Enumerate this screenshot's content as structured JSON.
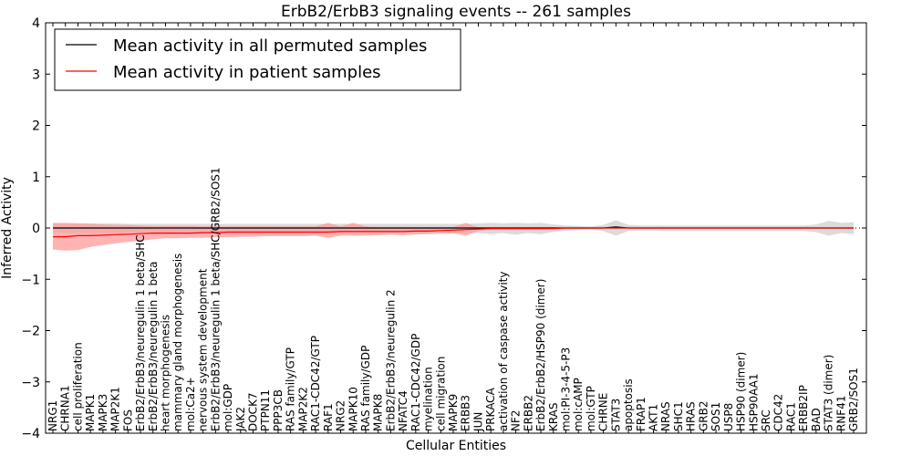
{
  "chart_data": {
    "type": "line",
    "title": "ErbB2/ErbB3 signaling events -- 261 samples",
    "xlabel": "Cellular Entities",
    "ylabel": "Inferred Activity",
    "ylim": [
      -4,
      4
    ],
    "yticks": [
      "4",
      "3",
      "2",
      "1",
      "0",
      "−1",
      "−2",
      "−3",
      "−4"
    ],
    "legend": {
      "position": "top-left",
      "entries": [
        {
          "label": "Mean activity in all permuted samples",
          "color": "#000000"
        },
        {
          "label": "Mean activity in patient samples",
          "color": "#ff0000"
        }
      ]
    },
    "categories": [
      "NRG1",
      "CHRNA1",
      "cell proliferation",
      "MAPK1",
      "MAPK3",
      "MAP2K1",
      "FOS",
      "ErbB2/ErbB3/neuregulin 1 beta/SHC",
      "ErbB2/ErbB3/neuregulin 1 beta",
      "heart morphogenesis",
      "mammary gland morphogenesis",
      "mol:Ca2+",
      "nervous system development",
      "ErbB2/ErbB3/neuregulin 1 beta/SHC/GRB2/SOS1",
      "mol:GDP",
      "JAK2",
      "DOCK7",
      "PTPN11",
      "PPP3CB",
      "RAS family/GTP",
      "MAP2K2",
      "RAC1-CDC42/GTP",
      "RAF1",
      "NRG2",
      "MAPK10",
      "RAS family/GDP",
      "MAPK8",
      "ErbB2/ErbB3/neuregulin 2",
      "NFATC4",
      "RAC1-CDC42/GDP",
      "myelination",
      "cell migration",
      "MAPK9",
      "ERBB3",
      "JUN",
      "PRKACA",
      "activation of caspase activity",
      "NF2",
      "ERBB2",
      "ErbB2/ErbB2/HSP90 (dimer)",
      "KRAS",
      "mol:PI-3-4-5-P3",
      "mol:cAMP",
      "mol:GTP",
      "CHRNE",
      "STAT3",
      "apoptosis",
      "FRAP1",
      "AKT1",
      "NRAS",
      "SHC1",
      "HRAS",
      "GRB2",
      "SOS1",
      "USP8",
      "HSP90 (dimer)",
      "HSP90AA1",
      "SRC",
      "CDC42",
      "RAC1",
      "ERBB2IP",
      "BAD",
      "STAT3 (dimer)",
      "RNF41",
      "GRB2/SOS1"
    ],
    "series": [
      {
        "name": "Mean activity in all permuted samples",
        "color": "#000000",
        "values": [
          0,
          0,
          0,
          0,
          0,
          0,
          0,
          0,
          0,
          0,
          0,
          0,
          0,
          0,
          0,
          0,
          0,
          0,
          0,
          0,
          0,
          0,
          0,
          0,
          0,
          0,
          0,
          0,
          0,
          0,
          0,
          0,
          0,
          0,
          0,
          0,
          0,
          0,
          0,
          0,
          0,
          0,
          0,
          0,
          0,
          0.02,
          0,
          0,
          0,
          0,
          0,
          0,
          0,
          0,
          0,
          0,
          0,
          0,
          0,
          0,
          0,
          0,
          0,
          0,
          0
        ]
      },
      {
        "name": "Mean activity in patient samples",
        "color": "#ff0000",
        "values": [
          -0.17,
          -0.17,
          -0.15,
          -0.15,
          -0.14,
          -0.13,
          -0.12,
          -0.11,
          -0.1,
          -0.1,
          -0.1,
          -0.1,
          -0.09,
          -0.09,
          -0.08,
          -0.08,
          -0.08,
          -0.08,
          -0.08,
          -0.08,
          -0.08,
          -0.08,
          -0.08,
          -0.07,
          -0.07,
          -0.07,
          -0.07,
          -0.07,
          -0.07,
          -0.06,
          -0.06,
          -0.05,
          -0.04,
          -0.03,
          -0.02,
          -0.01,
          -0.01,
          -0.01,
          -0.01,
          -0.01,
          -0.01,
          0,
          0,
          0,
          0,
          0,
          0,
          0,
          0,
          0,
          0,
          0,
          0,
          0,
          0,
          0,
          0,
          0,
          0,
          0,
          0,
          0,
          0,
          0,
          0
        ]
      }
    ],
    "bands": [
      {
        "name": "permuted samples spread",
        "color": "#cccccc",
        "lower": [
          -0.08,
          -0.09,
          -0.1,
          -0.1,
          -0.1,
          -0.1,
          -0.09,
          -0.09,
          -0.09,
          -0.09,
          -0.09,
          -0.09,
          -0.09,
          -0.09,
          -0.09,
          -0.09,
          -0.09,
          -0.09,
          -0.09,
          -0.09,
          -0.09,
          -0.09,
          -0.09,
          -0.09,
          -0.09,
          -0.09,
          -0.09,
          -0.09,
          -0.09,
          -0.09,
          -0.09,
          -0.09,
          -0.09,
          -0.09,
          -0.1,
          -0.12,
          -0.1,
          -0.13,
          -0.1,
          -0.12,
          -0.08,
          -0.05,
          -0.04,
          -0.03,
          -0.06,
          -0.15,
          -0.06,
          -0.05,
          -0.05,
          -0.06,
          -0.06,
          -0.06,
          -0.06,
          -0.06,
          -0.06,
          -0.06,
          -0.06,
          -0.06,
          -0.06,
          -0.06,
          -0.06,
          -0.08,
          -0.15,
          -0.1,
          -0.12
        ],
        "upper": [
          0.08,
          0.08,
          0.09,
          0.09,
          0.09,
          0.09,
          0.08,
          0.08,
          0.08,
          0.08,
          0.08,
          0.08,
          0.08,
          0.08,
          0.08,
          0.08,
          0.08,
          0.08,
          0.08,
          0.08,
          0.08,
          0.08,
          0.08,
          0.08,
          0.08,
          0.08,
          0.08,
          0.08,
          0.08,
          0.08,
          0.08,
          0.08,
          0.08,
          0.08,
          0.09,
          0.1,
          0.09,
          0.1,
          0.09,
          0.1,
          0.07,
          0.05,
          0.04,
          0.03,
          0.06,
          0.15,
          0.06,
          0.05,
          0.05,
          0.05,
          0.05,
          0.05,
          0.05,
          0.05,
          0.05,
          0.05,
          0.05,
          0.05,
          0.05,
          0.05,
          0.05,
          0.07,
          0.14,
          0.1,
          0.11
        ]
      },
      {
        "name": "patient samples spread",
        "color": "#ff9999",
        "lower": [
          -0.42,
          -0.44,
          -0.43,
          -0.37,
          -0.33,
          -0.3,
          -0.27,
          -0.25,
          -0.22,
          -0.2,
          -0.2,
          -0.19,
          -0.19,
          -0.18,
          -0.18,
          -0.17,
          -0.17,
          -0.16,
          -0.16,
          -0.16,
          -0.16,
          -0.15,
          -0.19,
          -0.15,
          -0.15,
          -0.15,
          -0.14,
          -0.13,
          -0.14,
          -0.13,
          -0.12,
          -0.11,
          -0.1,
          -0.15,
          -0.06,
          -0.03,
          -0.03,
          -0.03,
          -0.03,
          -0.03,
          -0.02,
          -0.01,
          -0.01,
          -0.01,
          -0.01,
          0,
          0,
          0,
          0,
          0,
          0,
          0,
          0,
          0,
          0,
          0,
          0,
          0,
          0,
          0,
          0,
          0,
          0,
          0,
          0
        ],
        "upper": [
          0.1,
          0.1,
          0.09,
          0.08,
          0.07,
          0.06,
          0.06,
          0.05,
          0.04,
          0.04,
          0.04,
          0.04,
          0.03,
          0.03,
          0.03,
          0.03,
          0.03,
          0.03,
          0.03,
          0.03,
          0.03,
          0.03,
          0.1,
          0.03,
          0.1,
          0.03,
          0.02,
          0.02,
          0.02,
          0.02,
          0.02,
          0.02,
          0.02,
          0.1,
          0.01,
          0.01,
          0.01,
          0.01,
          0.01,
          0.01,
          0.01,
          0.01,
          0.01,
          0.01,
          0.01,
          0.01,
          0.01,
          0.01,
          0.01,
          0.01,
          0.01,
          0.01,
          0.01,
          0.01,
          0.01,
          0.01,
          0.01,
          0.01,
          0.01,
          0.01,
          0.01,
          0.01,
          0.01,
          0.01,
          0.01
        ]
      }
    ]
  }
}
